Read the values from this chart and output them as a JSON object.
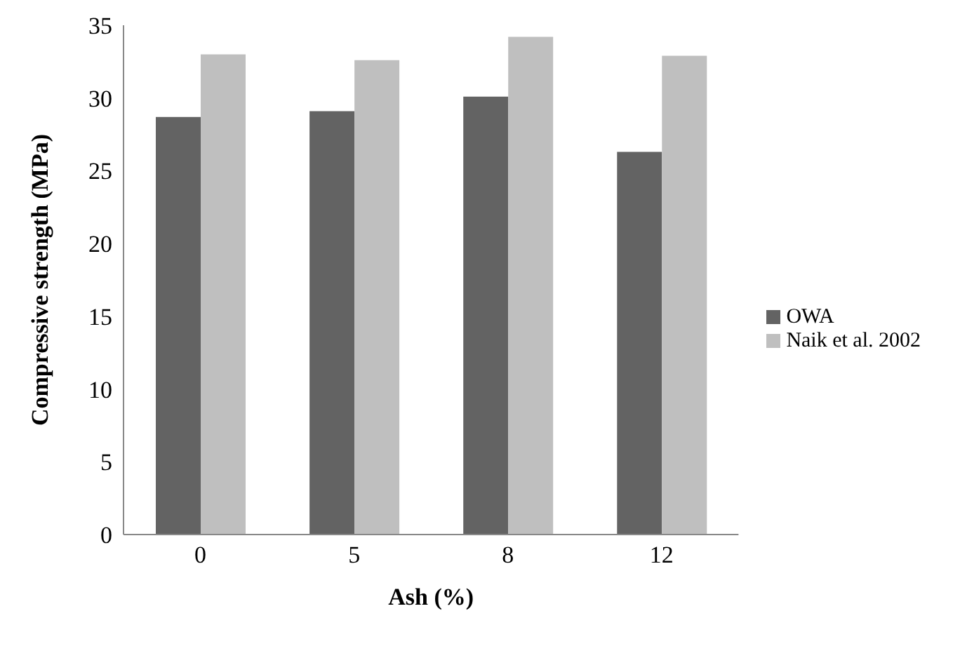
{
  "chart_data": {
    "type": "bar",
    "xlabel": "Ash (%)",
    "ylabel": "Compressive strength (MPa)",
    "categories": [
      "0",
      "5",
      "8",
      "12"
    ],
    "series": [
      {
        "name": "OWA",
        "color": "#636363",
        "values": [
          28.7,
          29.1,
          30.1,
          26.3
        ]
      },
      {
        "name": "Naik et al. 2002",
        "color": "#bfbfbf",
        "values": [
          33.0,
          32.6,
          34.2,
          32.9
        ]
      }
    ],
    "ylim": [
      0,
      35
    ],
    "yticks": [
      0,
      5,
      10,
      15,
      20,
      25,
      30,
      35
    ],
    "grid": false,
    "legend": "right"
  }
}
